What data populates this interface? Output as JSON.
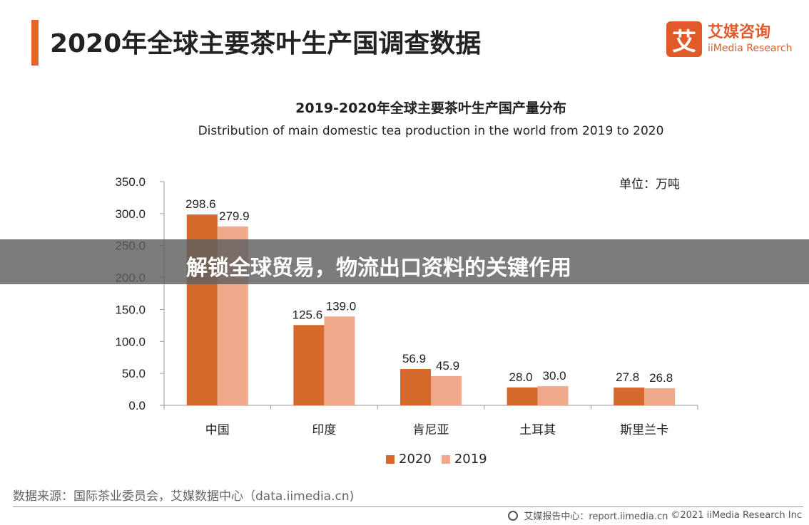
{
  "header": {
    "title": "2020年全球主要茶叶生产国调查数据",
    "accent_color": "#e8642a"
  },
  "logo": {
    "mark": "艾",
    "cn": "艾媒咨询",
    "en": "iiMedia Research",
    "color": "#e05a2a"
  },
  "chart_data": {
    "type": "bar",
    "title": "2019-2020年全球主要茶叶生产国产量分布",
    "subtitle": "Distribution of main domestic tea production in the world from 2019 to 2020",
    "unit_label": "单位：万吨",
    "categories": [
      "中国",
      "印度",
      "肯尼亚",
      "土耳其",
      "斯里兰卡"
    ],
    "series": [
      {
        "name": "2020",
        "color": "#d4692b",
        "values": [
          298.6,
          125.6,
          56.9,
          28.0,
          27.8
        ],
        "labels": [
          "298.6",
          "125.6",
          "56.9",
          "28.0",
          "27.8"
        ]
      },
      {
        "name": "2019",
        "color": "#f0a98b",
        "values": [
          279.9,
          139.0,
          45.9,
          30.0,
          26.8
        ],
        "labels": [
          "279.9",
          "139.0",
          "45.9",
          "30.0",
          "26.8"
        ]
      }
    ],
    "ylim": [
      0,
      350
    ],
    "yticks": [
      "0.0",
      "50.0",
      "100.0",
      "150.0",
      "200.0",
      "250.0",
      "300.0",
      "350.0"
    ],
    "xlabel": "",
    "ylabel": "",
    "legend": "bottom"
  },
  "source": "数据来源：国际茶业委员会，艾媒数据中心（data.iimedia.cn)",
  "footer": {
    "site": "艾媒报告中心：report.iimedia.cn",
    "copyright": "©2021  iiMedia Research  Inc"
  },
  "overlay": {
    "text": "解锁全球贸易，物流出口资料的关键作用"
  }
}
